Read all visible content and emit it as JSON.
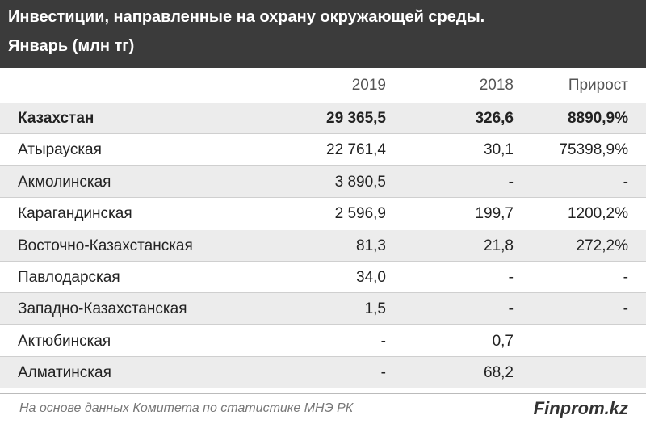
{
  "header": {
    "title": "Инвестиции, направленные на охрану окружающей среды.",
    "subtitle": "Январь (млн тг)"
  },
  "table": {
    "columns": [
      "2019",
      "2018",
      "Прирост"
    ],
    "rows": [
      [
        "Казахстан",
        "29 365,5",
        "326,6",
        "8890,9%"
      ],
      [
        "Атырауская",
        "22 761,4",
        "30,1",
        "75398,9%"
      ],
      [
        "Акмолинская",
        "3 890,5",
        "-",
        "-"
      ],
      [
        "Карагандинская",
        "2 596,9",
        "199,7",
        "1200,2%"
      ],
      [
        "Восточно-Казахстанская",
        "81,3",
        "21,8",
        "272,2%"
      ],
      [
        "Павлодарская",
        "34,0",
        "-",
        "-"
      ],
      [
        "Западно-Казахстанская",
        "1,5",
        "-",
        "-"
      ],
      [
        "Актюбинская",
        "-",
        "0,7",
        ""
      ],
      [
        "Алматинская",
        "-",
        "68,2",
        ""
      ]
    ]
  },
  "footer": {
    "source": "На основе данных Комитета по статистике МНЭ РК",
    "brand": "Finprom.kz"
  }
}
